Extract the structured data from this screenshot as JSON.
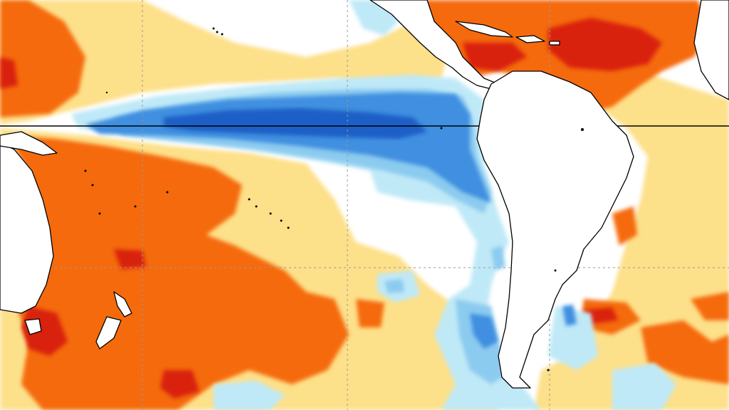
{
  "map": {
    "type": "sea-surface-temperature-anomaly",
    "palette": {
      "warm_1": "#fde08a",
      "warm_2": "#fb9a3a",
      "warm_3": "#f56a0a",
      "warm_4": "#d9230c",
      "neutral": "#ffffff",
      "cool_1": "#bfe9f7",
      "cool_2": "#8ccbf0",
      "cool_3": "#3f8fe0",
      "cool_4": "#1f5fc6",
      "land": "#ffffff",
      "coastline": "#000000",
      "gridline": "#9a9a9a",
      "equator": "#000000"
    },
    "features": [
      "equatorial-cold-tongue",
      "south-american-cold-coast-current",
      "caribbean-warm-pool",
      "southwest-pacific-warm-anomaly",
      "south-atlantic-warm-patches"
    ],
    "graticule": {
      "dashed": true,
      "equator_solid": true
    }
  }
}
